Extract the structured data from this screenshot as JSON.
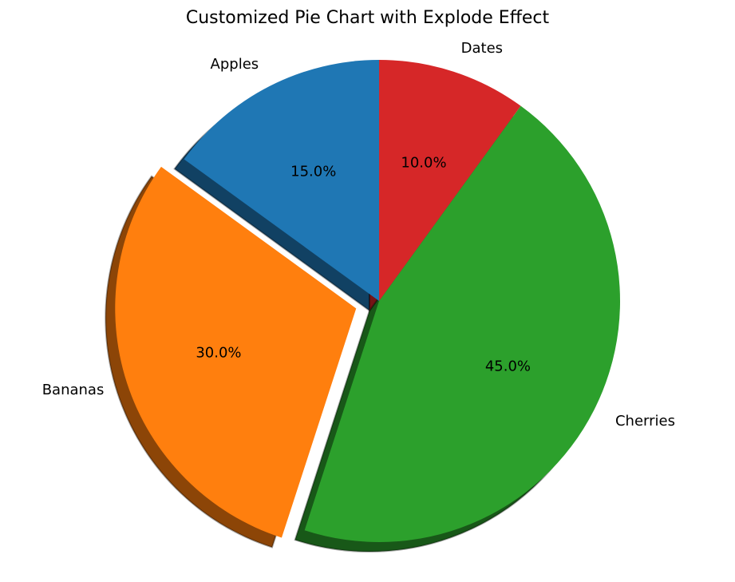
{
  "chart_data": {
    "type": "pie",
    "title": "Customized Pie Chart with Explode Effect",
    "categories": [
      "Apples",
      "Bananas",
      "Cherries",
      "Dates"
    ],
    "values": [
      15,
      30,
      45,
      10
    ],
    "percent_labels": [
      "15.0%",
      "30.0%",
      "45.0%",
      "10.0%"
    ],
    "colors": [
      "#1f77b4",
      "#ff7f0e",
      "#2ca02c",
      "#d62728"
    ],
    "explode": [
      0,
      0.1,
      0,
      0
    ],
    "start_angle": 90,
    "shadow": true,
    "legend": false
  }
}
